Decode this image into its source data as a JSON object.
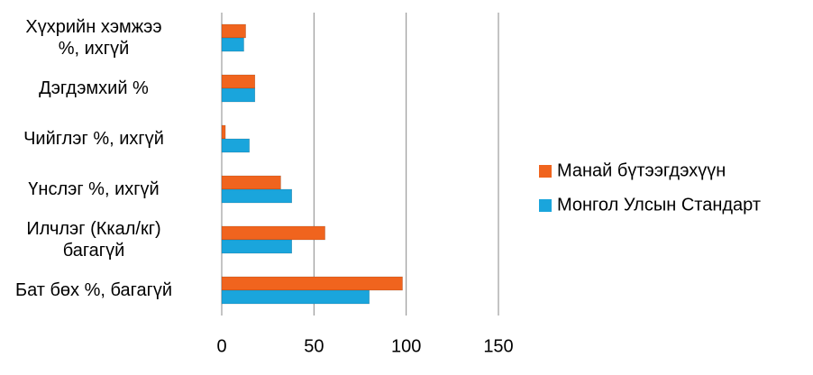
{
  "chart_data": {
    "type": "hbar",
    "categories": [
      "Хүхрийн хэмжээ\n%, ихгүй",
      "Дэгдэмхий %",
      "Чийглэг %, ихгүй",
      "Үнслэг %, ихгүй",
      "Илчлэг (Ккал/кг)\nбагагүй",
      "Бат бөх %, багагүй"
    ],
    "series": [
      {
        "name": "Манай бүтээгдэхүүн",
        "color": "#f0641e",
        "values": [
          13,
          18,
          2,
          32,
          56,
          98
        ]
      },
      {
        "name": "Монгол Улсын Стандарт",
        "color": "#1aa5dc",
        "values": [
          12,
          18,
          15,
          38,
          38,
          80
        ]
      }
    ],
    "xlim": [
      0,
      150
    ],
    "xticks": [
      0,
      50,
      100,
      150
    ],
    "grid": true,
    "legend": "right"
  }
}
